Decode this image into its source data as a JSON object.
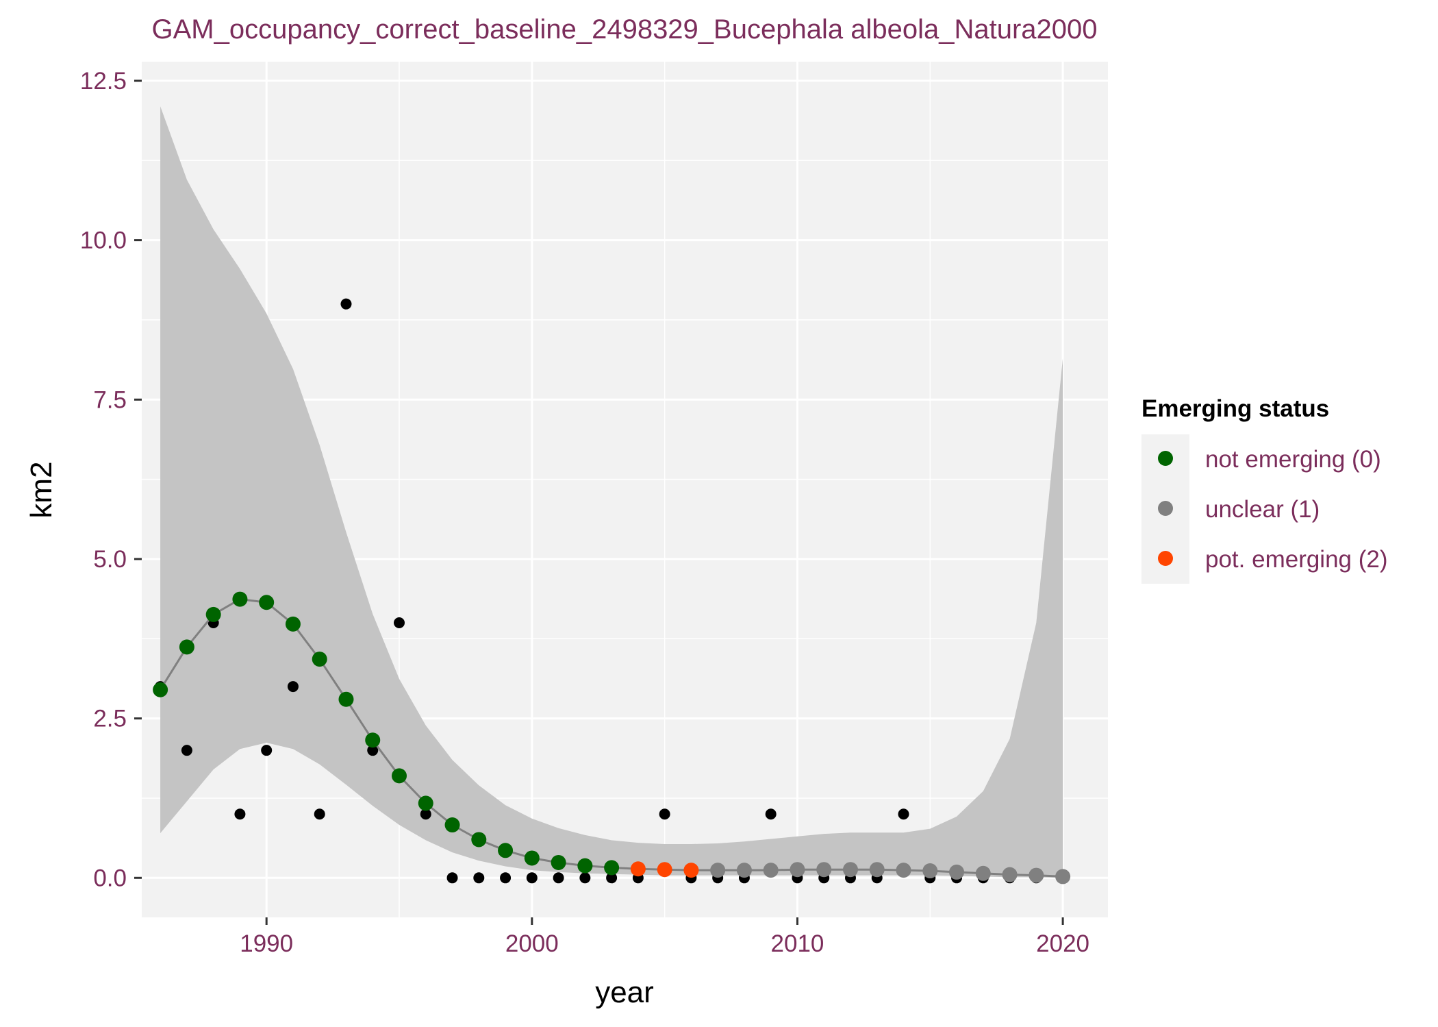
{
  "chart_data": {
    "type": "scatter",
    "title": "GAM_occupancy_correct_baseline_2498329_Bucephala albeola_Natura2000",
    "xlabel": "year",
    "ylabel": "km2",
    "xlim": [
      1985.3,
      2021.7
    ],
    "ylim": [
      -0.62,
      12.8
    ],
    "x_ticks": [
      1990,
      2000,
      2010,
      2020
    ],
    "x_tick_labels": [
      "1990",
      "2000",
      "2010",
      "2020"
    ],
    "y_ticks": [
      0,
      2.5,
      5,
      7.5,
      10,
      12.5
    ],
    "y_tick_labels": [
      "0.0",
      "2.5",
      "5.0",
      "7.5",
      "10.0",
      "12.5"
    ],
    "grid": true,
    "legend": {
      "title": "Emerging status",
      "placement": "right",
      "entries": [
        {
          "label": "not emerging (0)",
          "color": "#006400"
        },
        {
          "label": "unclear (1)",
          "color": "#808080"
        },
        {
          "label": "pot. emerging (2)",
          "color": "#FF4500"
        }
      ]
    },
    "colors": {
      "panel": "#F2F2F2",
      "grid": "#FFFFFF",
      "ribbon": "#C4C4C4",
      "fit_line": "#808080",
      "observed": "#000000",
      "title_text": "#7B2D5B",
      "tick_text": "#7B2D5B"
    },
    "observed": {
      "x": [
        1986,
        1987,
        1988,
        1989,
        1990,
        1991,
        1992,
        1993,
        1994,
        1995,
        1996,
        1997,
        1998,
        1999,
        2000,
        2001,
        2002,
        2003,
        2004,
        2005,
        2006,
        2007,
        2008,
        2009,
        2010,
        2011,
        2012,
        2013,
        2014,
        2015,
        2016,
        2017,
        2018,
        2019,
        2020
      ],
      "y": [
        3,
        2,
        4,
        1,
        2,
        3,
        1,
        9,
        2,
        4,
        1,
        0,
        0,
        0,
        0,
        0,
        0,
        0,
        0,
        1,
        0,
        0,
        0,
        1,
        0,
        0,
        0,
        0,
        1,
        0,
        0,
        0,
        0,
        0,
        0
      ]
    },
    "fit": {
      "x": [
        1986,
        1987,
        1988,
        1989,
        1990,
        1991,
        1992,
        1993,
        1994,
        1995,
        1996,
        1997,
        1998,
        1999,
        2000,
        2001,
        2002,
        2003,
        2004,
        2005,
        2006,
        2007,
        2008,
        2009,
        2010,
        2011,
        2012,
        2013,
        2014,
        2015,
        2016,
        2017,
        2018,
        2019,
        2020
      ],
      "y": [
        2.95,
        3.62,
        4.13,
        4.37,
        4.32,
        3.98,
        3.43,
        2.8,
        2.16,
        1.6,
        1.17,
        0.83,
        0.6,
        0.43,
        0.31,
        0.24,
        0.19,
        0.16,
        0.14,
        0.13,
        0.12,
        0.12,
        0.12,
        0.12,
        0.13,
        0.13,
        0.13,
        0.13,
        0.12,
        0.11,
        0.09,
        0.07,
        0.05,
        0.04,
        0.02
      ],
      "lower": [
        0.7,
        1.2,
        1.7,
        2.02,
        2.12,
        2.02,
        1.78,
        1.46,
        1.13,
        0.83,
        0.59,
        0.4,
        0.27,
        0.18,
        0.12,
        0.09,
        0.07,
        0.06,
        0.05,
        0.04,
        0.04,
        0.04,
        0.04,
        0.04,
        0.04,
        0.04,
        0.04,
        0.04,
        0.04,
        0.04,
        0.03,
        0.02,
        0.01,
        0.01,
        0.0
      ],
      "upper": [
        12.1,
        10.95,
        10.17,
        9.55,
        8.85,
        7.98,
        6.79,
        5.42,
        4.14,
        3.12,
        2.39,
        1.85,
        1.45,
        1.14,
        0.93,
        0.78,
        0.67,
        0.59,
        0.55,
        0.53,
        0.53,
        0.54,
        0.57,
        0.61,
        0.65,
        0.69,
        0.71,
        0.71,
        0.71,
        0.77,
        0.96,
        1.36,
        2.18,
        4.0,
        8.15
      ],
      "status": [
        0,
        0,
        0,
        0,
        0,
        0,
        0,
        0,
        0,
        0,
        0,
        0,
        0,
        0,
        0,
        0,
        0,
        0,
        2,
        2,
        2,
        1,
        1,
        1,
        1,
        1,
        1,
        1,
        1,
        1,
        1,
        1,
        1,
        1,
        1
      ]
    }
  }
}
